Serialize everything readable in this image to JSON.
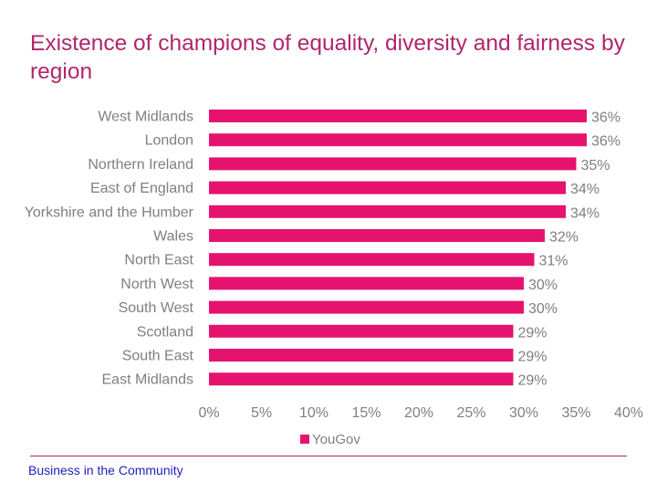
{
  "title": "Existence of champions of equality, diversity and fairness by region",
  "footer": "Business in the Community",
  "colors": {
    "bar": "#e5136d",
    "title": "#b0266b",
    "text": "#7f7f7f"
  },
  "chart_data": {
    "type": "bar",
    "orientation": "horizontal",
    "title": "Existence of champions of equality, diversity and fairness by region",
    "categories": [
      "West Midlands",
      "London",
      "Northern Ireland",
      "East of England",
      "Yorkshire and the Humber",
      "Wales",
      "North East",
      "North West",
      "South West",
      "Scotland",
      "South East",
      "East Midlands"
    ],
    "series": [
      {
        "name": "YouGov",
        "values": [
          36,
          36,
          35,
          34,
          34,
          32,
          31,
          30,
          30,
          29,
          29,
          29
        ]
      }
    ],
    "value_labels": [
      "36%",
      "36%",
      "35%",
      "34%",
      "34%",
      "32%",
      "31%",
      "30%",
      "30%",
      "29%",
      "29%",
      "29%"
    ],
    "xlim": [
      0,
      40
    ],
    "xticks": [
      "0%",
      "5%",
      "10%",
      "15%",
      "20%",
      "25%",
      "30%",
      "35%",
      "40%"
    ],
    "legend": "bottom",
    "grid": false,
    "xlabel": "",
    "ylabel": ""
  }
}
